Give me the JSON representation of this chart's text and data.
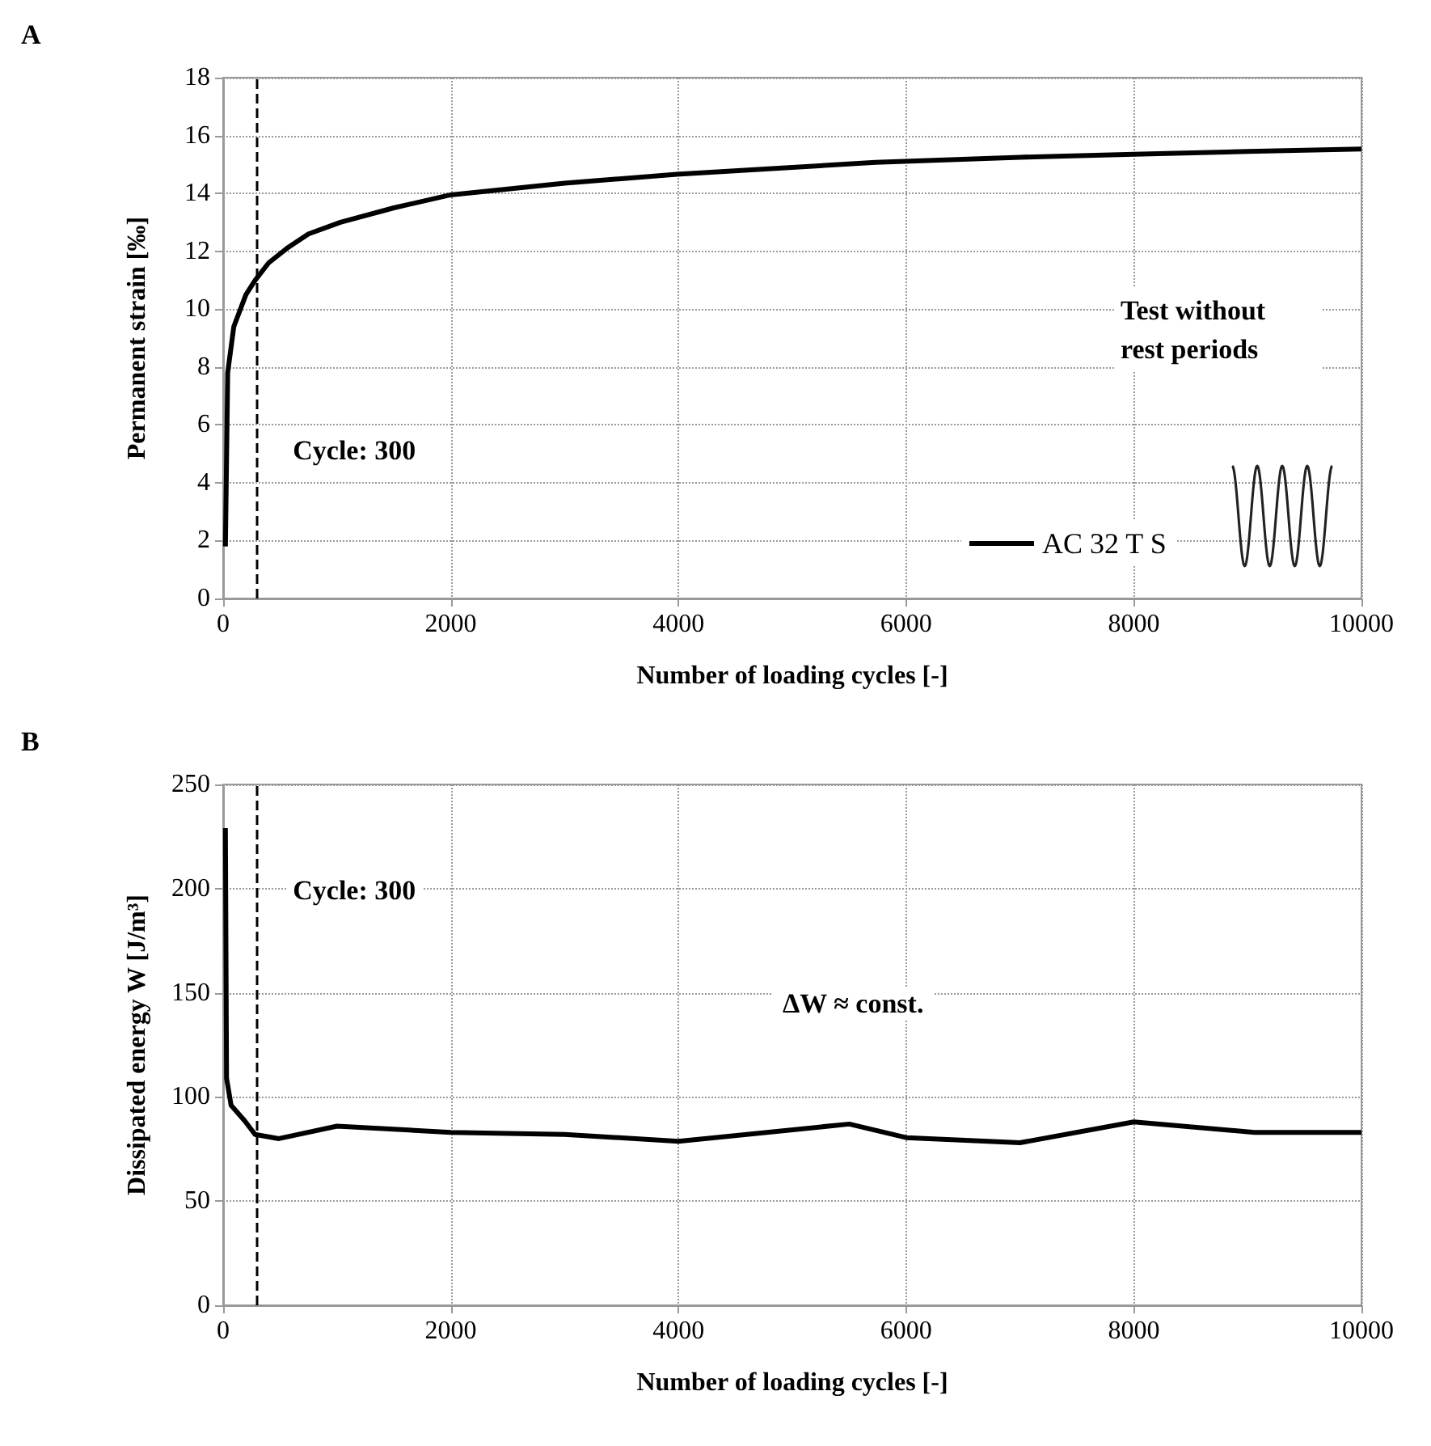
{
  "chart_data": [
    {
      "type": "line",
      "title": "A",
      "xlabel": "Number of loading cycles [-]",
      "ylabel": "Permanent strain [‰]",
      "x": [
        20,
        40,
        94,
        200,
        282,
        400,
        560,
        750,
        1030,
        1500,
        2000,
        3000,
        3985,
        5000,
        5730,
        7000,
        8000,
        9000,
        10000
      ],
      "series": [
        {
          "name": "AC 32 T S",
          "color": "#000000",
          "values": [
            1.8,
            7.8,
            9.4,
            10.5,
            11.0,
            11.6,
            12.1,
            12.6,
            13.0,
            13.5,
            13.95,
            14.35,
            14.66,
            14.9,
            15.07,
            15.25,
            15.35,
            15.45,
            15.53
          ]
        }
      ],
      "xlim": [
        0,
        10000
      ],
      "xticks": [
        0,
        2000,
        4000,
        6000,
        8000,
        10000
      ],
      "ylim": [
        0,
        18
      ],
      "yticks": [
        0,
        2,
        4,
        6,
        8,
        10,
        12,
        14,
        16,
        18
      ],
      "grid": true,
      "legend": "bottom right",
      "marker": "none",
      "line_style": "solid",
      "ref_lines": [
        {
          "axis": "x",
          "value": 300,
          "label": "Cycle: 300",
          "line_style": "dashed",
          "color": "#000000"
        }
      ],
      "annotations": [
        "Test without rest periods"
      ]
    },
    {
      "type": "line",
      "title": "B",
      "xlabel": "Number of loading cycles [-]",
      "ylabel": "Dissipated energy W [J/m³]",
      "x": [
        20,
        30,
        70,
        190,
        280,
        490,
        1000,
        2000,
        3000,
        4000,
        5500,
        6000,
        7000,
        8000,
        9060,
        10000
      ],
      "series": [
        {
          "color": "#000000",
          "values": [
            229,
            109,
            96,
            88.5,
            82,
            80,
            86,
            83,
            82,
            78.7,
            87,
            80.5,
            78,
            88,
            83,
            83
          ]
        }
      ],
      "xlim": [
        0,
        10000
      ],
      "xticks": [
        0,
        2000,
        4000,
        6000,
        8000,
        10000
      ],
      "ylim": [
        0,
        250
      ],
      "yticks": [
        0,
        50,
        100,
        150,
        200,
        250
      ],
      "grid": true,
      "legend": false,
      "marker": "none",
      "line_style": "solid",
      "ref_lines": [
        {
          "axis": "x",
          "value": 300,
          "label": "Cycle: 300",
          "line_style": "dashed",
          "color": "#000000"
        }
      ],
      "annotations": [
        "ΔW ≈ const."
      ]
    }
  ]
}
